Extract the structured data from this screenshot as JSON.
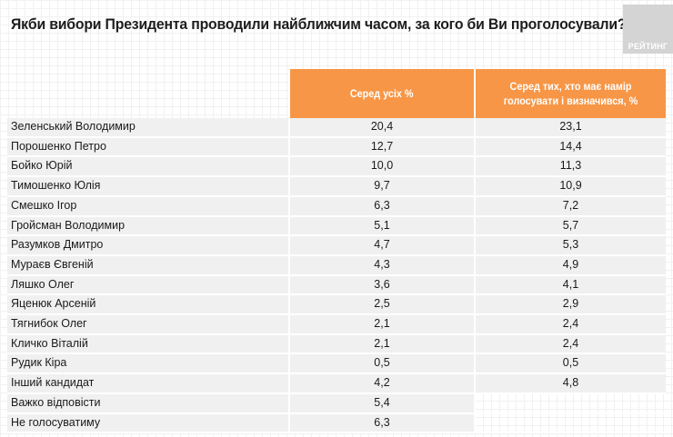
{
  "title": "Якби вибори Президента проводили найближчим часом, за кого би Ви проголосували?",
  "logo": "РЕЙТИНГ",
  "colors": {
    "header_bg": "#f79646",
    "row_bg": "#f0f0f0",
    "logo_bg": "#d4d4d4"
  },
  "table": {
    "columns": [
      "",
      "Серед усіх %",
      "Серед тих, хто має намір голосувати і визначився, %"
    ],
    "rows": [
      {
        "name": "Зеленський Володимир",
        "all": "20,4",
        "decided": "23,1"
      },
      {
        "name": "Порошенко Петро",
        "all": "12,7",
        "decided": "14,4"
      },
      {
        "name": "Бойко Юрій",
        "all": "10,0",
        "decided": "11,3"
      },
      {
        "name": "Тимошенко Юлія",
        "all": "9,7",
        "decided": "10,9"
      },
      {
        "name": "Смешко Ігор",
        "all": "6,3",
        "decided": "7,2"
      },
      {
        "name": "Гройсман Володимир",
        "all": "5,1",
        "decided": "5,7"
      },
      {
        "name": "Разумков Дмитро",
        "all": "4,7",
        "decided": "5,3"
      },
      {
        "name": "Мураєв Євгеній",
        "all": "4,3",
        "decided": "4,9"
      },
      {
        "name": "Ляшко Олег",
        "all": "3,6",
        "decided": "4,1"
      },
      {
        "name": "Яценюк Арсеній",
        "all": "2,5",
        "decided": "2,9"
      },
      {
        "name": "Тягнибок Олег",
        "all": "2,1",
        "decided": "2,4"
      },
      {
        "name": "Кличко Віталій",
        "all": "2,1",
        "decided": "2,4"
      },
      {
        "name": "Рудик Кіра",
        "all": "0,5",
        "decided": "0,5"
      },
      {
        "name": "Інший кандидат",
        "all": "4,2",
        "decided": "4,8"
      },
      {
        "name": "Важко відповісти",
        "all": "5,4",
        "decided": null
      },
      {
        "name": "Не голосуватиму",
        "all": "6,3",
        "decided": null
      }
    ]
  }
}
